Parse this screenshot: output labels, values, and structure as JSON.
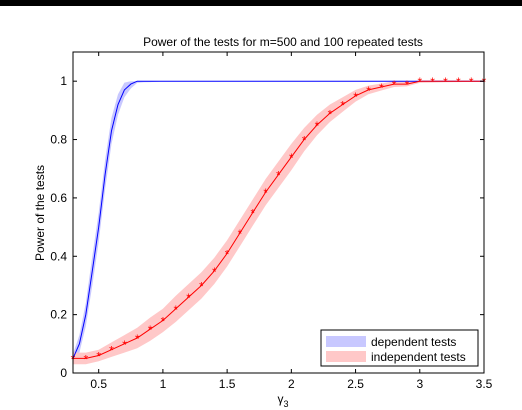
{
  "chart_data": {
    "type": "line",
    "title": "Power of the tests for m=500 and 100 repeated tests",
    "xlabel": "γ",
    "xlabel_sub": "3",
    "ylabel": "Power of the tests",
    "xlim": [
      0.3,
      3.5
    ],
    "ylim": [
      0,
      1.1
    ],
    "xticks": [
      "0.5",
      "1",
      "1.5",
      "2",
      "2.5",
      "3",
      "3.5"
    ],
    "yticks": [
      "0",
      "0.2",
      "0.4",
      "0.6",
      "0.8",
      "1"
    ],
    "grid": false,
    "legend_position": "bottom-right",
    "series": [
      {
        "name": "dependent tests",
        "line_color": "#0000ff",
        "band_color": "#c8c8ff",
        "marker": "none",
        "x": [
          0.3,
          0.35,
          0.4,
          0.45,
          0.5,
          0.55,
          0.6,
          0.65,
          0.7,
          0.75,
          0.8,
          0.85,
          0.9,
          0.95,
          1.0,
          1.5,
          2.0,
          2.5,
          3.0,
          3.5
        ],
        "y": [
          0.05,
          0.1,
          0.2,
          0.35,
          0.5,
          0.68,
          0.83,
          0.92,
          0.97,
          0.99,
          1.0,
          1.0,
          1.0,
          1.0,
          1.0,
          1.0,
          1.0,
          1.0,
          1.0,
          1.0
        ],
        "band": [
          0.015,
          0.03,
          0.04,
          0.05,
          0.05,
          0.05,
          0.045,
          0.035,
          0.025,
          0.015,
          0.006,
          0.004,
          0.003,
          0.002,
          0.0,
          0.0,
          0.0,
          0.0,
          0.0,
          0.0
        ]
      },
      {
        "name": "independent tests",
        "line_color": "#ff0000",
        "band_color": "#ffc8c8",
        "marker": "*",
        "x": [
          0.3,
          0.4,
          0.5,
          0.6,
          0.7,
          0.8,
          0.9,
          1.0,
          1.1,
          1.2,
          1.3,
          1.4,
          1.5,
          1.6,
          1.7,
          1.8,
          1.9,
          2.0,
          2.1,
          2.2,
          2.3,
          2.4,
          2.5,
          2.6,
          2.7,
          2.8,
          2.9,
          3.0,
          3.1,
          3.2,
          3.3,
          3.4,
          3.5
        ],
        "y": [
          0.05,
          0.05,
          0.06,
          0.08,
          0.1,
          0.12,
          0.15,
          0.18,
          0.22,
          0.26,
          0.3,
          0.35,
          0.41,
          0.48,
          0.55,
          0.62,
          0.68,
          0.74,
          0.8,
          0.85,
          0.89,
          0.92,
          0.95,
          0.97,
          0.98,
          0.99,
          0.99,
          1.0,
          1.0,
          1.0,
          1.0,
          1.0,
          1.0
        ],
        "band": [
          0.02,
          0.02,
          0.02,
          0.025,
          0.03,
          0.035,
          0.04,
          0.04,
          0.045,
          0.045,
          0.045,
          0.045,
          0.045,
          0.045,
          0.045,
          0.045,
          0.045,
          0.045,
          0.04,
          0.035,
          0.03,
          0.025,
          0.02,
          0.015,
          0.012,
          0.01,
          0.008,
          0.006,
          0.005,
          0.004,
          0.003,
          0.002,
          0.002
        ]
      }
    ]
  }
}
